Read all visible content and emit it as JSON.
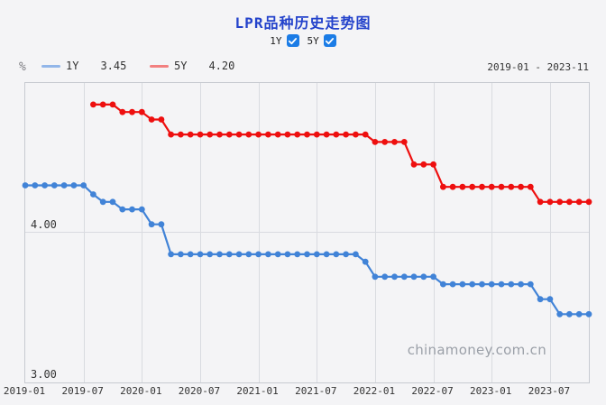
{
  "page": {
    "title": "LPR品种历史走势图",
    "watermark": "chinamoney.com.cn",
    "background_color": "#f4f4f6"
  },
  "controls": {
    "checkbox_color": "#1b7ce6",
    "items": [
      {
        "label": "1Y",
        "checked": true
      },
      {
        "label": "5Y",
        "checked": true
      }
    ]
  },
  "legend": {
    "unit": "%",
    "period": "2019-01 - 2023-11",
    "items": [
      {
        "name": "1Y",
        "value": "3.45",
        "swatch_color": "#92b6e9"
      },
      {
        "name": "5Y",
        "value": "4.20",
        "swatch_color": "#f28080"
      }
    ]
  },
  "chart_data": {
    "type": "line",
    "title": "LPR品种历史走势图",
    "x_start": "2019-01",
    "x_end": "2023-11",
    "x_unit": "month",
    "x_month_count": 59,
    "ylabel": "%",
    "ylim": [
      3.0,
      5.0
    ],
    "grid": true,
    "y_gridline_values": [
      4.0
    ],
    "y_axis_labels": [
      {
        "value": 3.0,
        "label": "3.00"
      },
      {
        "value": 4.0,
        "label": "4.00"
      }
    ],
    "x_ticks": [
      {
        "month_index": 0,
        "label": "2019-01"
      },
      {
        "month_index": 6,
        "label": "2019-07"
      },
      {
        "month_index": 12,
        "label": "2020-01"
      },
      {
        "month_index": 18,
        "label": "2020-07"
      },
      {
        "month_index": 24,
        "label": "2021-01"
      },
      {
        "month_index": 30,
        "label": "2021-07"
      },
      {
        "month_index": 36,
        "label": "2022-01"
      },
      {
        "month_index": 42,
        "label": "2022-07"
      },
      {
        "month_index": 48,
        "label": "2023-01"
      },
      {
        "month_index": 54,
        "label": "2023-07"
      }
    ],
    "colors": {
      "grid": "#d9dbe0",
      "border": "#c7cad1",
      "axis_text": "#333333"
    },
    "series": [
      {
        "name": "1Y",
        "color": "#4183d7",
        "start": "2019-01",
        "start_index": 0,
        "latest": 3.45,
        "values": [
          4.31,
          4.31,
          4.31,
          4.31,
          4.31,
          4.31,
          4.31,
          4.25,
          4.2,
          4.2,
          4.15,
          4.15,
          4.15,
          4.05,
          4.05,
          3.85,
          3.85,
          3.85,
          3.85,
          3.85,
          3.85,
          3.85,
          3.85,
          3.85,
          3.85,
          3.85,
          3.85,
          3.85,
          3.85,
          3.85,
          3.85,
          3.85,
          3.85,
          3.85,
          3.85,
          3.8,
          3.7,
          3.7,
          3.7,
          3.7,
          3.7,
          3.7,
          3.7,
          3.65,
          3.65,
          3.65,
          3.65,
          3.65,
          3.65,
          3.65,
          3.65,
          3.65,
          3.65,
          3.55,
          3.55,
          3.45,
          3.45,
          3.45,
          3.45
        ]
      },
      {
        "name": "5Y",
        "color": "#ee0f0f",
        "start": "2019-08",
        "start_index": 7,
        "latest": 4.2,
        "values": [
          4.85,
          4.85,
          4.85,
          4.8,
          4.8,
          4.8,
          4.75,
          4.75,
          4.65,
          4.65,
          4.65,
          4.65,
          4.65,
          4.65,
          4.65,
          4.65,
          4.65,
          4.65,
          4.65,
          4.65,
          4.65,
          4.65,
          4.65,
          4.65,
          4.65,
          4.65,
          4.65,
          4.65,
          4.65,
          4.6,
          4.6,
          4.6,
          4.6,
          4.45,
          4.45,
          4.45,
          4.3,
          4.3,
          4.3,
          4.3,
          4.3,
          4.3,
          4.3,
          4.3,
          4.3,
          4.3,
          4.2,
          4.2,
          4.2,
          4.2,
          4.2,
          4.2
        ]
      }
    ]
  }
}
